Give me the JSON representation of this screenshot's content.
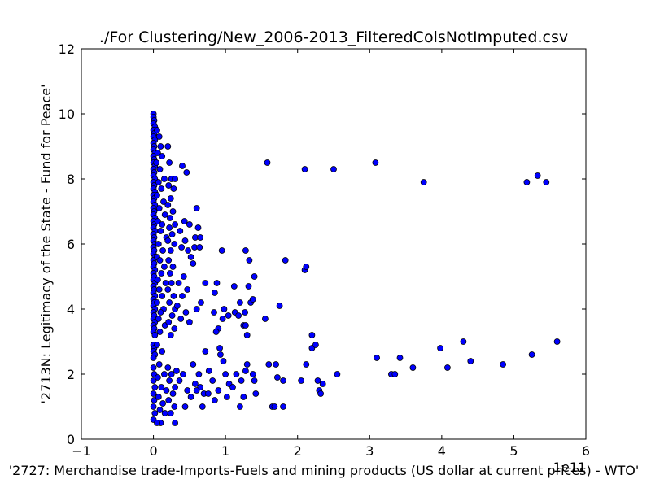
{
  "chart_data": {
    "type": "scatter",
    "title": "./For Clustering/New_2006-2013_FilteredColsNotImputed.csv",
    "xlabel": "'2727: Merchandise trade-Imports-Fuels and mining products (US dollar at current prices) - WTO'",
    "ylabel": "'2713N: Legitimacy of the State - Fund for Peace'",
    "x_offset_label": "1e11",
    "x_scale": 100000000000,
    "xlim": [
      -1,
      6
    ],
    "ylim": [
      0,
      12
    ],
    "xticks": [
      "−1",
      "0",
      "1",
      "2",
      "3",
      "4",
      "5",
      "6"
    ],
    "yticks": [
      "0",
      "2",
      "4",
      "6",
      "8",
      "10",
      "12"
    ],
    "grid": false,
    "marker_color": "#0000ff",
    "points_in_axis_units": [
      [
        0.0,
        10.0
      ],
      [
        0.0,
        9.9
      ],
      [
        0.01,
        9.8
      ],
      [
        0.0,
        9.7
      ],
      [
        0.02,
        9.6
      ],
      [
        0.0,
        9.5
      ],
      [
        0.01,
        9.4
      ],
      [
        0.0,
        9.3
      ],
      [
        0.02,
        9.2
      ],
      [
        0.0,
        9.1
      ],
      [
        0.01,
        9.0
      ],
      [
        0.0,
        8.9
      ],
      [
        0.02,
        8.8
      ],
      [
        0.0,
        8.7
      ],
      [
        0.01,
        8.6
      ],
      [
        0.0,
        8.5
      ],
      [
        0.02,
        8.4
      ],
      [
        0.0,
        8.3
      ],
      [
        0.01,
        8.2
      ],
      [
        0.0,
        8.1
      ],
      [
        0.02,
        8.0
      ],
      [
        0.0,
        7.9
      ],
      [
        0.01,
        7.8
      ],
      [
        0.0,
        7.7
      ],
      [
        0.02,
        7.6
      ],
      [
        0.0,
        7.5
      ],
      [
        0.01,
        7.4
      ],
      [
        0.0,
        7.3
      ],
      [
        0.02,
        7.2
      ],
      [
        0.0,
        7.1
      ],
      [
        0.01,
        7.0
      ],
      [
        0.0,
        6.9
      ],
      [
        0.02,
        6.8
      ],
      [
        0.0,
        6.7
      ],
      [
        0.01,
        6.6
      ],
      [
        0.0,
        6.5
      ],
      [
        0.02,
        6.4
      ],
      [
        0.0,
        6.3
      ],
      [
        0.01,
        6.2
      ],
      [
        0.0,
        6.1
      ],
      [
        0.02,
        6.0
      ],
      [
        0.0,
        5.9
      ],
      [
        0.01,
        5.8
      ],
      [
        0.0,
        5.7
      ],
      [
        0.02,
        5.6
      ],
      [
        0.0,
        5.5
      ],
      [
        0.01,
        5.4
      ],
      [
        0.0,
        5.3
      ],
      [
        0.02,
        5.2
      ],
      [
        0.0,
        5.1
      ],
      [
        0.01,
        5.0
      ],
      [
        0.0,
        4.9
      ],
      [
        0.02,
        4.8
      ],
      [
        0.0,
        4.7
      ],
      [
        0.01,
        4.6
      ],
      [
        0.0,
        4.5
      ],
      [
        0.02,
        4.4
      ],
      [
        0.0,
        4.3
      ],
      [
        0.01,
        4.2
      ],
      [
        0.0,
        4.1
      ],
      [
        0.02,
        4.0
      ],
      [
        0.0,
        3.9
      ],
      [
        0.01,
        3.8
      ],
      [
        0.0,
        3.7
      ],
      [
        0.02,
        3.6
      ],
      [
        0.0,
        3.5
      ],
      [
        0.01,
        3.4
      ],
      [
        0.0,
        3.3
      ],
      [
        0.02,
        3.2
      ],
      [
        0.0,
        2.9
      ],
      [
        0.01,
        2.8
      ],
      [
        0.0,
        2.7
      ],
      [
        0.02,
        2.6
      ],
      [
        0.0,
        2.5
      ],
      [
        0.0,
        2.2
      ],
      [
        0.01,
        2.0
      ],
      [
        0.0,
        1.8
      ],
      [
        0.02,
        1.6
      ],
      [
        0.0,
        1.4
      ],
      [
        0.01,
        1.2
      ],
      [
        0.0,
        1.0
      ],
      [
        0.02,
        0.8
      ],
      [
        0.0,
        0.6
      ],
      [
        0.05,
        9.5
      ],
      [
        0.08,
        9.3
      ],
      [
        0.1,
        9.0
      ],
      [
        0.06,
        8.8
      ],
      [
        0.12,
        8.7
      ],
      [
        0.04,
        8.5
      ],
      [
        0.09,
        8.3
      ],
      [
        0.15,
        8.0
      ],
      [
        0.07,
        7.9
      ],
      [
        0.11,
        7.7
      ],
      [
        0.05,
        7.5
      ],
      [
        0.14,
        7.3
      ],
      [
        0.08,
        7.1
      ],
      [
        0.16,
        6.9
      ],
      [
        0.06,
        6.7
      ],
      [
        0.12,
        6.6
      ],
      [
        0.1,
        6.4
      ],
      [
        0.18,
        6.2
      ],
      [
        0.07,
        6.0
      ],
      [
        0.13,
        5.8
      ],
      [
        0.05,
        5.6
      ],
      [
        0.09,
        5.5
      ],
      [
        0.15,
        5.3
      ],
      [
        0.11,
        5.1
      ],
      [
        0.06,
        4.9
      ],
      [
        0.17,
        4.8
      ],
      [
        0.08,
        4.6
      ],
      [
        0.12,
        4.4
      ],
      [
        0.05,
        4.2
      ],
      [
        0.14,
        4.0
      ],
      [
        0.1,
        3.9
      ],
      [
        0.07,
        3.7
      ],
      [
        0.16,
        3.5
      ],
      [
        0.09,
        3.3
      ],
      [
        0.05,
        2.9
      ],
      [
        0.12,
        2.7
      ],
      [
        0.08,
        2.3
      ],
      [
        0.15,
        2.0
      ],
      [
        0.06,
        1.9
      ],
      [
        0.11,
        1.6
      ],
      [
        0.18,
        1.5
      ],
      [
        0.07,
        1.3
      ],
      [
        0.13,
        1.1
      ],
      [
        0.09,
        0.9
      ],
      [
        0.16,
        0.8
      ],
      [
        0.1,
        0.5
      ],
      [
        0.05,
        0.5
      ],
      [
        0.2,
        9.0
      ],
      [
        0.22,
        8.5
      ],
      [
        0.25,
        8.0
      ],
      [
        0.3,
        8.0
      ],
      [
        0.21,
        7.8
      ],
      [
        0.28,
        7.7
      ],
      [
        0.24,
        7.4
      ],
      [
        0.2,
        7.2
      ],
      [
        0.27,
        7.0
      ],
      [
        0.23,
        6.8
      ],
      [
        0.3,
        6.6
      ],
      [
        0.22,
        6.5
      ],
      [
        0.26,
        6.3
      ],
      [
        0.2,
        6.1
      ],
      [
        0.29,
        6.0
      ],
      [
        0.24,
        5.8
      ],
      [
        0.21,
        5.5
      ],
      [
        0.27,
        5.3
      ],
      [
        0.23,
        5.1
      ],
      [
        0.25,
        4.8
      ],
      [
        0.2,
        4.6
      ],
      [
        0.28,
        4.4
      ],
      [
        0.22,
        4.2
      ],
      [
        0.3,
        4.0
      ],
      [
        0.26,
        3.8
      ],
      [
        0.21,
        3.6
      ],
      [
        0.29,
        3.4
      ],
      [
        0.24,
        3.2
      ],
      [
        0.2,
        2.2
      ],
      [
        0.25,
        2.0
      ],
      [
        0.22,
        1.8
      ],
      [
        0.3,
        1.6
      ],
      [
        0.27,
        1.4
      ],
      [
        0.21,
        1.2
      ],
      [
        0.29,
        1.0
      ],
      [
        0.24,
        0.8
      ],
      [
        0.3,
        0.5
      ],
      [
        0.4,
        8.4
      ],
      [
        0.46,
        8.2
      ],
      [
        0.43,
        6.7
      ],
      [
        0.37,
        6.4
      ],
      [
        0.5,
        6.6
      ],
      [
        0.44,
        6.1
      ],
      [
        0.39,
        5.9
      ],
      [
        0.48,
        5.8
      ],
      [
        0.52,
        5.6
      ],
      [
        0.55,
        5.4
      ],
      [
        0.42,
        5.0
      ],
      [
        0.35,
        4.8
      ],
      [
        0.47,
        4.6
      ],
      [
        0.4,
        4.4
      ],
      [
        0.33,
        4.1
      ],
      [
        0.45,
        3.9
      ],
      [
        0.38,
        3.7
      ],
      [
        0.5,
        3.6
      ],
      [
        0.32,
        2.1
      ],
      [
        0.41,
        2.0
      ],
      [
        0.36,
        1.8
      ],
      [
        0.47,
        1.5
      ],
      [
        0.52,
        1.3
      ],
      [
        0.44,
        1.0
      ],
      [
        0.6,
        7.1
      ],
      [
        0.62,
        6.5
      ],
      [
        0.58,
        6.2
      ],
      [
        0.65,
        6.2
      ],
      [
        0.57,
        5.9
      ],
      [
        0.64,
        5.9
      ],
      [
        0.6,
        4.0
      ],
      [
        0.72,
        4.8
      ],
      [
        0.66,
        4.2
      ],
      [
        0.55,
        2.3
      ],
      [
        0.63,
        2.0
      ],
      [
        0.58,
        1.7
      ],
      [
        0.65,
        1.6
      ],
      [
        0.7,
        1.4
      ],
      [
        0.68,
        1.0
      ],
      [
        0.6,
        1.5
      ],
      [
        0.72,
        2.7
      ],
      [
        0.77,
        2.1
      ],
      [
        0.82,
        1.8
      ],
      [
        0.76,
        1.4
      ],
      [
        0.85,
        1.2
      ],
      [
        0.9,
        1.5
      ],
      [
        0.88,
        4.8
      ],
      [
        0.85,
        4.5
      ],
      [
        0.84,
        3.9
      ],
      [
        0.9,
        3.4
      ],
      [
        0.87,
        3.3
      ],
      [
        0.96,
        3.7
      ],
      [
        0.98,
        4.0
      ],
      [
        1.04,
        3.8
      ],
      [
        0.95,
        5.8
      ],
      [
        0.92,
        2.8
      ],
      [
        0.93,
        2.6
      ],
      [
        0.97,
        2.4
      ],
      [
        1.0,
        2.0
      ],
      [
        1.05,
        1.7
      ],
      [
        1.02,
        1.3
      ],
      [
        1.1,
        1.6
      ],
      [
        1.12,
        4.7
      ],
      [
        1.13,
        3.9
      ],
      [
        1.18,
        3.8
      ],
      [
        1.2,
        4.2
      ],
      [
        1.25,
        3.5
      ],
      [
        1.28,
        3.5
      ],
      [
        1.27,
        3.9
      ],
      [
        1.3,
        3.2
      ],
      [
        1.35,
        4.2
      ],
      [
        1.4,
        5.0
      ],
      [
        1.32,
        4.7
      ],
      [
        1.38,
        4.3
      ],
      [
        1.28,
        5.8
      ],
      [
        1.33,
        5.5
      ],
      [
        1.15,
        2.0
      ],
      [
        1.22,
        1.8
      ],
      [
        1.28,
        2.1
      ],
      [
        1.3,
        2.3
      ],
      [
        1.38,
        2.0
      ],
      [
        1.4,
        1.8
      ],
      [
        1.42,
        1.4
      ],
      [
        1.25,
        1.3
      ],
      [
        1.2,
        1.0
      ],
      [
        1.55,
        3.7
      ],
      [
        1.6,
        2.3
      ],
      [
        1.7,
        2.3
      ],
      [
        1.72,
        1.9
      ],
      [
        1.8,
        1.8
      ],
      [
        1.65,
        1.0
      ],
      [
        1.68,
        1.0
      ],
      [
        1.8,
        1.0
      ],
      [
        1.75,
        4.1
      ],
      [
        1.83,
        5.5
      ],
      [
        2.05,
        1.8
      ],
      [
        2.12,
        2.3
      ],
      [
        2.2,
        2.8
      ],
      [
        2.2,
        3.2
      ],
      [
        2.25,
        2.9
      ],
      [
        2.28,
        1.8
      ],
      [
        2.3,
        1.5
      ],
      [
        2.32,
        1.4
      ],
      [
        2.35,
        1.7
      ],
      [
        2.55,
        2.0
      ],
      [
        2.1,
        5.2
      ],
      [
        2.12,
        5.3
      ],
      [
        1.58,
        8.5
      ],
      [
        2.1,
        8.3
      ],
      [
        2.5,
        8.3
      ],
      [
        3.08,
        8.5
      ],
      [
        3.75,
        7.9
      ],
      [
        3.1,
        2.5
      ],
      [
        3.3,
        2.0
      ],
      [
        3.35,
        2.0
      ],
      [
        3.42,
        2.5
      ],
      [
        3.6,
        2.2
      ],
      [
        3.98,
        2.8
      ],
      [
        4.08,
        2.2
      ],
      [
        4.3,
        3.0
      ],
      [
        4.4,
        2.4
      ],
      [
        4.85,
        2.3
      ],
      [
        5.25,
        2.6
      ],
      [
        5.6,
        3.0
      ],
      [
        5.18,
        7.9
      ],
      [
        5.33,
        8.1
      ],
      [
        5.45,
        7.9
      ]
    ]
  }
}
